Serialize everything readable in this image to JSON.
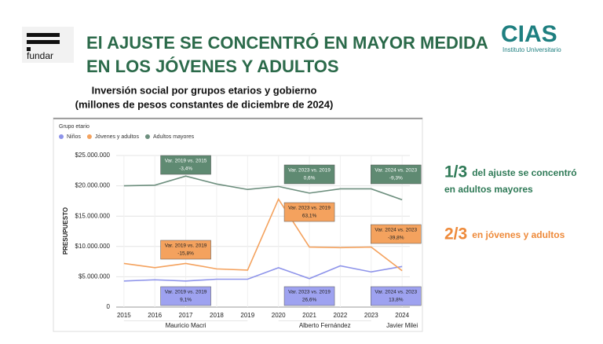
{
  "header": {
    "title_lines": [
      "El AJUSTE SE CONCENTRÓ EN MAYOR MEDIDA",
      "EN LOS JÓVENES Y ADULTOS"
    ],
    "left_logo": "fundar",
    "right_logo": "CIAS",
    "right_logo_sub": "Instituto Universitario"
  },
  "chart_data": {
    "type": "line",
    "title": "Inversión social por grupos etarios y gobierno",
    "subtitle": "(millones de pesos constantes de diciembre de 2024)",
    "legend_title": "Grupo etario",
    "y_label": "PRESUPUESTO",
    "x": [
      2015,
      2016,
      2017,
      2018,
      2019,
      2020,
      2021,
      2022,
      2023,
      2024
    ],
    "xlim": [
      2014.75,
      2024.25
    ],
    "xticks": [
      2015,
      2016,
      2017,
      2018,
      2019,
      2020,
      2021,
      2022,
      2023,
      2024
    ],
    "ylim": [
      0,
      25000000
    ],
    "yticks": [
      0,
      {
        "value": 5000000,
        "label": "$5.000.000"
      },
      {
        "value": 10000000,
        "label": "$10.000.000"
      },
      {
        "value": 15000000,
        "label": "$15.000.000"
      },
      {
        "value": 20000000,
        "label": "$20.000.000"
      },
      {
        "value": 25000000,
        "label": "$25.000.000"
      }
    ],
    "grid": true,
    "series": [
      {
        "name": "Niños",
        "color": "#8e94ea",
        "values": [
          4300000,
          4500000,
          4300000,
          4600000,
          4600000,
          6500000,
          4700000,
          6800000,
          5800000,
          6700000
        ]
      },
      {
        "name": "Jóvenes y adultos",
        "color": "#f4a25e",
        "values": [
          7200000,
          6500000,
          7200000,
          6300000,
          6100000,
          17800000,
          9900000,
          9800000,
          9900000,
          6000000
        ]
      },
      {
        "name": "Adultos mayores",
        "color": "#6d8f7e",
        "values": [
          20000000,
          20100000,
          21600000,
          20300000,
          19400000,
          19900000,
          18800000,
          19500000,
          19500000,
          17700000
        ]
      }
    ],
    "periods": [
      {
        "label": "Mauricio Macri",
        "from": 2015,
        "to": 2019
      },
      {
        "label": "Alberto Fernández",
        "from": 2020,
        "to": 2023
      },
      {
        "label": "Javier Milei",
        "from": 2024,
        "to": 2024
      }
    ],
    "annotations": [
      {
        "lines": [
          "Var. 2019 vs. 2015",
          "-3,4%"
        ],
        "color": "#5f8a72",
        "text_color": "#ffffff"
      },
      {
        "lines": [
          "Var. 2023 vs. 2019",
          "0,6%"
        ],
        "color": "#5f8a72",
        "text_color": "#ffffff"
      },
      {
        "lines": [
          "Var. 2024 vs. 2023",
          "-9,3%"
        ],
        "color": "#5f8a72",
        "text_color": "#ffffff"
      },
      {
        "lines": [
          "Var. 2019 vs. 2019",
          "-15,8%"
        ],
        "color": "#f4a25e",
        "text_color": "#222222"
      },
      {
        "lines": [
          "Var. 2023 vs. 2019",
          "63,1%"
        ],
        "color": "#f4a25e",
        "text_color": "#222222"
      },
      {
        "lines": [
          "Var. 2024 vs. 2023",
          "-39,8%"
        ],
        "color": "#f4a25e",
        "text_color": "#222222"
      },
      {
        "lines": [
          "Var. 2019 vs. 2019",
          "9,1%"
        ],
        "color": "#9ea2f0",
        "text_color": "#222222"
      },
      {
        "lines": [
          "Var. 2023 vs. 2019",
          "26,6%"
        ],
        "color": "#9ea2f0",
        "text_color": "#222222"
      },
      {
        "lines": [
          "Var. 2024 vs. 2023",
          "13,8%"
        ],
        "color": "#9ea2f0",
        "text_color": "#222222"
      }
    ]
  },
  "side_notes": [
    {
      "fraction": "1/3",
      "lines": [
        "del ajuste se concentró",
        "en adultos mayores"
      ],
      "color": "#2f7a57"
    },
    {
      "fraction": "2/3",
      "lines": [
        "en jóvenes y adultos"
      ],
      "color": "#ee8a3a"
    }
  ]
}
